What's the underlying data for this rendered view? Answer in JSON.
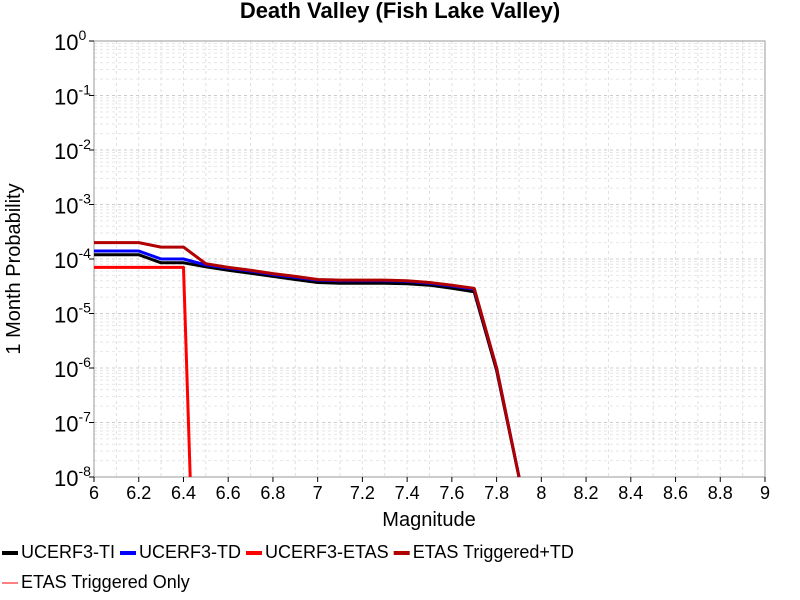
{
  "chart_data": {
    "type": "line",
    "title": "Death Valley (Fish Lake Valley)",
    "xlabel": "Magnitude",
    "ylabel": "1 Month Probability",
    "xlim": [
      6,
      9
    ],
    "ylim": [
      1e-08,
      1
    ],
    "y_scale": "log",
    "grid": true,
    "legend_position": "bottom",
    "x_ticks": [
      "6",
      "6.2",
      "6.4",
      "6.6",
      "6.8",
      "7",
      "7.2",
      "7.4",
      "7.6",
      "7.8",
      "8",
      "8.2",
      "8.4",
      "8.6",
      "8.8",
      "9"
    ],
    "y_ticks": [
      {
        "base": "10",
        "exp": "0"
      },
      {
        "base": "10",
        "exp": "-1"
      },
      {
        "base": "10",
        "exp": "-2"
      },
      {
        "base": "10",
        "exp": "-3"
      },
      {
        "base": "10",
        "exp": "-4"
      },
      {
        "base": "10",
        "exp": "-5"
      },
      {
        "base": "10",
        "exp": "-6"
      },
      {
        "base": "10",
        "exp": "-7"
      },
      {
        "base": "10",
        "exp": "-8"
      }
    ],
    "series": [
      {
        "name": "UCERF3-TI",
        "color": "#000000",
        "x": [
          6.0,
          6.2,
          6.3,
          6.4,
          6.5,
          6.6,
          6.7,
          6.8,
          6.9,
          7.0,
          7.1,
          7.2,
          7.3,
          7.4,
          7.5,
          7.6,
          7.7,
          7.8,
          7.9
        ],
        "y": [
          0.00012,
          0.00012,
          8.5e-05,
          8.5e-05,
          7.2e-05,
          6.2e-05,
          5.5e-05,
          4.8e-05,
          4.2e-05,
          3.7e-05,
          3.6e-05,
          3.6e-05,
          3.6e-05,
          3.5e-05,
          3.3e-05,
          2.9e-05,
          2.5e-05,
          9e-07,
          1e-08
        ]
      },
      {
        "name": "UCERF3-TD",
        "color": "#0000ff",
        "x": [
          6.0,
          6.2,
          6.3,
          6.4,
          6.5,
          6.6,
          6.7,
          6.8,
          6.9,
          7.0,
          7.1,
          7.2,
          7.3,
          7.4,
          7.5,
          7.6,
          7.7,
          7.8,
          7.9
        ],
        "y": [
          0.00014,
          0.00014,
          0.0001,
          0.0001,
          7.8e-05,
          6.8e-05,
          6e-05,
          5.2e-05,
          4.6e-05,
          4.1e-05,
          4e-05,
          4e-05,
          4e-05,
          3.9e-05,
          3.6e-05,
          3.2e-05,
          2.8e-05,
          1e-06,
          1e-08
        ]
      },
      {
        "name": "UCERF3-ETAS",
        "color": "#ff0000",
        "x": [
          6.0,
          6.2,
          6.3,
          6.4,
          6.43
        ],
        "y": [
          7e-05,
          7e-05,
          7e-05,
          7e-05,
          1e-08
        ]
      },
      {
        "name": "ETAS Triggered+TD",
        "color": "#b00000",
        "x": [
          6.0,
          6.2,
          6.3,
          6.4,
          6.5,
          6.6,
          6.7,
          6.8,
          6.9,
          7.0,
          7.1,
          7.2,
          7.3,
          7.4,
          7.5,
          7.6,
          7.7,
          7.8,
          7.9
        ],
        "y": [
          0.0002,
          0.0002,
          0.000165,
          0.000165,
          8.2e-05,
          7e-05,
          6.2e-05,
          5.4e-05,
          4.8e-05,
          4.2e-05,
          4.1e-05,
          4.1e-05,
          4.1e-05,
          4e-05,
          3.7e-05,
          3.3e-05,
          2.9e-05,
          1e-06,
          1e-08
        ]
      },
      {
        "name": "ETAS Triggered Only",
        "color": "#ff8080",
        "x": [],
        "y": []
      }
    ]
  }
}
